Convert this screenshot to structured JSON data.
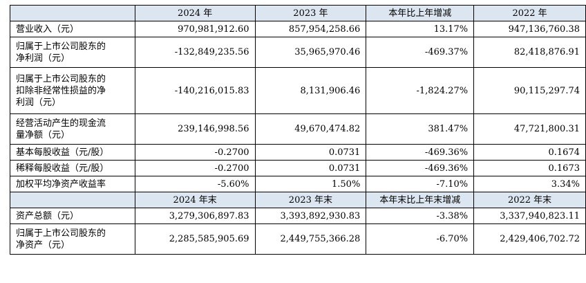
{
  "header1": [
    "",
    "2024 年",
    "2023 年",
    "本年比上年增减",
    "2022 年"
  ],
  "rows1": [
    [
      "营业收入（元）",
      "970,981,912.60",
      "857,954,258.66",
      "13.17%",
      "947,136,760.38"
    ],
    [
      "归属于上市公司股东的\n净利润（元）",
      "-132,849,235.56",
      "35,965,970.46",
      "-469.37%",
      "82,418,876.91"
    ],
    [
      "归属于上市公司股东的\n扣除非经常性损益的净\n利润（元）",
      "-140,216,015.83",
      "8,131,906.46",
      "-1,824.27%",
      "90,115,297.74"
    ],
    [
      "经营活动产生的现金流\n量净额（元）",
      "239,146,998.56",
      "49,670,474.82",
      "381.47%",
      "47,721,800.31"
    ],
    [
      "基本每股收益（元/股）",
      "-0.2700",
      "0.0731",
      "-469.36%",
      "0.1674"
    ],
    [
      "稀释每股收益（元/股）",
      "-0.2700",
      "0.0731",
      "-469.36%",
      "0.1673"
    ],
    [
      "加权平均净资产收益率",
      "-5.60%",
      "1.50%",
      "-7.10%",
      "3.34%"
    ]
  ],
  "header2": [
    "",
    "2024 年末",
    "2023 年末",
    "本年末比上年末增减",
    "2022 年末"
  ],
  "rows2": [
    [
      "资产总额（元）",
      "3,279,306,897.83",
      "3,393,892,930.83",
      "-3.38%",
      "3,337,940,823.11"
    ],
    [
      "归属于上市公司股东的\n净资产（元）",
      "2,285,585,905.69",
      "2,449,755,366.28",
      "-6.70%",
      "2,429,406,702.72"
    ]
  ]
}
